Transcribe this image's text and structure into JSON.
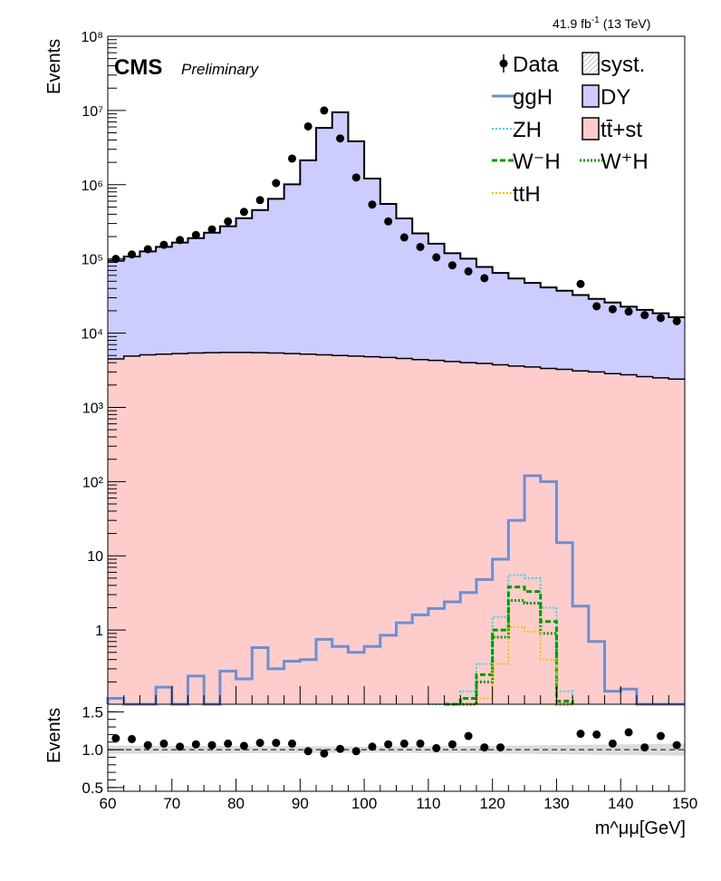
{
  "header": {
    "lumi_label": "41.9 fb",
    "lumi_sup": "-1",
    "lumi_energy": "(13 TeV)",
    "cms_label": "CMS",
    "preliminary_label": "Preliminary"
  },
  "colors": {
    "dy_fill": "#ccccff",
    "ttst_fill": "#ffcccc",
    "ggh": "#6d8fcf",
    "zh": "#33d6e6",
    "wmh": "#009900",
    "wph": "#009900",
    "tth": "#f5c000",
    "data": "#000000",
    "syst": "#cccccc"
  },
  "legend": {
    "position": "top-right",
    "entries": [
      {
        "key": "data",
        "label": "Data",
        "style": "marker"
      },
      {
        "key": "syst",
        "label": "syst.",
        "style": "hatched-box"
      },
      {
        "key": "ggh",
        "label": "ggH",
        "style": "line"
      },
      {
        "key": "dy",
        "label": "DY",
        "style": "box"
      },
      {
        "key": "zh",
        "label": "ZH",
        "style": "dotted-line"
      },
      {
        "key": "ttst",
        "label": "tt̄+st",
        "style": "box"
      },
      {
        "key": "wmh",
        "label": "W⁻H",
        "style": "dashed-line"
      },
      {
        "key": "wph",
        "label": "W⁺H",
        "style": "dotted-line"
      },
      {
        "key": "tth",
        "label": "ttH",
        "style": "dotted-line"
      }
    ]
  },
  "chart_data": [
    {
      "type": "bar",
      "subtype": "stacked-histogram-log",
      "xlabel": "",
      "ylabel": "Events",
      "xlim": [
        60,
        150
      ],
      "ylim": [
        0.1,
        100000000
      ],
      "yscale": "log",
      "y_tick_labels": [
        "1",
        "10",
        "10²",
        "10³",
        "10⁴",
        "10⁵",
        "10⁶",
        "10⁷",
        "10⁸"
      ],
      "bin_edges": [
        60,
        62.5,
        65,
        67.5,
        70,
        72.5,
        75,
        77.5,
        80,
        82.5,
        85,
        87.5,
        90,
        92.5,
        95,
        97.5,
        100,
        102.5,
        105,
        107.5,
        110,
        112.5,
        115,
        117.5,
        120,
        122.5,
        125,
        127.5,
        130,
        132.5,
        135,
        137.5,
        140,
        142.5,
        145,
        147.5,
        150
      ],
      "series": [
        {
          "name": "tt̄+st",
          "key": "ttst",
          "stacked": true,
          "values": [
            4500,
            4900,
            5100,
            5200,
            5300,
            5400,
            5450,
            5500,
            5500,
            5450,
            5400,
            5300,
            5200,
            5100,
            5000,
            4900,
            4800,
            4700,
            4550,
            4400,
            4300,
            4150,
            4000,
            3900,
            3750,
            3600,
            3500,
            3350,
            3250,
            3100,
            3000,
            2850,
            2750,
            2600,
            2500,
            2400
          ]
        },
        {
          "name": "DY",
          "key": "dy",
          "stacked": true,
          "values": [
            90000,
            103000,
            121000,
            140000,
            161000,
            185000,
            220000,
            270000,
            348000,
            450000,
            640000,
            1005000,
            2128000,
            5825000,
            9445000,
            3845000,
            1205000,
            545000,
            346000,
            216000,
            156000,
            115000,
            97000,
            74000,
            61000,
            51000,
            44000,
            38000,
            34000,
            29500,
            26000,
            23000,
            20000,
            18000,
            16000,
            14000
          ]
        },
        {
          "name": "ggH",
          "key": "ggh",
          "stacked": false,
          "values": [
            0.12,
            0.07,
            0.07,
            0.17,
            0.09,
            0.24,
            0.09,
            0.28,
            0.22,
            0.58,
            0.3,
            0.38,
            0.4,
            0.75,
            0.6,
            0.5,
            0.6,
            0.85,
            1.25,
            1.6,
            1.95,
            2.4,
            3.2,
            4.8,
            9,
            30,
            120,
            100,
            15,
            2.1,
            0.7,
            0.15,
            0.16,
            0.08,
            0.07,
            0.07
          ]
        },
        {
          "name": "ZH",
          "key": "zh",
          "stacked": false,
          "values": [
            0,
            0,
            0,
            0,
            0,
            0,
            0,
            0,
            0,
            0,
            0,
            0,
            0,
            0,
            0,
            0,
            0,
            0,
            0,
            0,
            0.07,
            0.09,
            0.15,
            0.35,
            1.5,
            5.5,
            5.0,
            2.0,
            0.15,
            0,
            0,
            0,
            0,
            0,
            0,
            0
          ]
        },
        {
          "name": "W⁻H",
          "key": "wmh",
          "stacked": false,
          "values": [
            0,
            0,
            0,
            0,
            0,
            0,
            0,
            0,
            0,
            0,
            0,
            0,
            0,
            0,
            0,
            0,
            0,
            0,
            0,
            0,
            0,
            0.07,
            0.12,
            0.25,
            1.0,
            3.8,
            3.3,
            1.3,
            0.11,
            0,
            0,
            0,
            0,
            0,
            0,
            0
          ]
        },
        {
          "name": "W⁺H",
          "key": "wph",
          "stacked": false,
          "values": [
            0,
            0,
            0,
            0,
            0,
            0,
            0,
            0,
            0,
            0,
            0,
            0,
            0,
            0,
            0,
            0,
            0,
            0,
            0,
            0,
            0,
            0.06,
            0.1,
            0.2,
            0.8,
            2.5,
            2.3,
            0.9,
            0.1,
            0,
            0,
            0,
            0,
            0,
            0,
            0
          ]
        },
        {
          "name": "ttH",
          "key": "tth",
          "stacked": false,
          "values": [
            0,
            0,
            0,
            0,
            0,
            0,
            0,
            0,
            0,
            0,
            0,
            0,
            0,
            0,
            0,
            0,
            0,
            0,
            0,
            0,
            0,
            0,
            0.06,
            0.12,
            0.35,
            1.1,
            0.95,
            0.4,
            0.07,
            0,
            0,
            0,
            0,
            0,
            0,
            0
          ]
        },
        {
          "name": "Data",
          "key": "data",
          "stacked": false,
          "markers": true,
          "x": [
            61.25,
            63.75,
            66.25,
            68.75,
            71.25,
            73.75,
            76.25,
            78.75,
            81.25,
            83.75,
            86.25,
            88.75,
            91.25,
            93.75,
            96.25,
            98.75,
            101.25,
            103.75,
            106.25,
            108.75,
            111.25,
            113.75,
            116.25,
            118.75,
            133.75,
            136.25,
            138.75,
            141.25,
            143.75,
            146.25,
            148.75
          ],
          "values": [
            100000,
            115000,
            135000,
            155000,
            180000,
            210000,
            250000,
            320000,
            430000,
            620000,
            1050000,
            2250000,
            6100000,
            10000000,
            4200000,
            1250000,
            540000,
            320000,
            195000,
            145000,
            105000,
            82000,
            68000,
            55000,
            46000,
            23000,
            21000,
            19500,
            17500,
            16000,
            14500
          ]
        }
      ]
    },
    {
      "type": "scatter",
      "subtype": "ratio-panel",
      "xlabel": "m^μμ[GeV]",
      "ylabel": "Events",
      "xlim": [
        60,
        150
      ],
      "ylim": [
        0.45,
        1.6
      ],
      "y_ticks": [
        0.5,
        1.0,
        1.5
      ],
      "y_tick_labels": [
        "0.5",
        "1.0",
        "1.5"
      ],
      "x_ticks": [
        60,
        70,
        80,
        90,
        100,
        110,
        120,
        130,
        140,
        150
      ],
      "x_tick_labels": [
        "60",
        "70",
        "80",
        "90",
        "100",
        "110",
        "120",
        "130",
        "140",
        "150"
      ],
      "reference_line": 1.0,
      "syst_band": [
        [
          60,
          0.055
        ],
        [
          100,
          0.04
        ],
        [
          120,
          0.05
        ],
        [
          150,
          0.08
        ]
      ],
      "x": [
        61.25,
        63.75,
        66.25,
        68.75,
        71.25,
        73.75,
        76.25,
        78.75,
        81.25,
        83.75,
        86.25,
        88.75,
        91.25,
        93.75,
        96.25,
        98.75,
        101.25,
        103.75,
        106.25,
        108.75,
        111.25,
        113.75,
        116.25,
        118.75,
        121.25,
        133.75,
        136.25,
        138.75,
        141.25,
        143.75,
        146.25,
        148.75
      ],
      "values": [
        1.15,
        1.14,
        1.06,
        1.08,
        1.04,
        1.07,
        1.06,
        1.08,
        1.05,
        1.09,
        1.09,
        1.08,
        0.98,
        0.95,
        1.01,
        0.98,
        1.04,
        1.07,
        1.08,
        1.08,
        1.02,
        1.07,
        1.18,
        1.03,
        1.03,
        1.21,
        1.2,
        1.08,
        1.23,
        1.03,
        1.18,
        1.06
      ]
    }
  ]
}
